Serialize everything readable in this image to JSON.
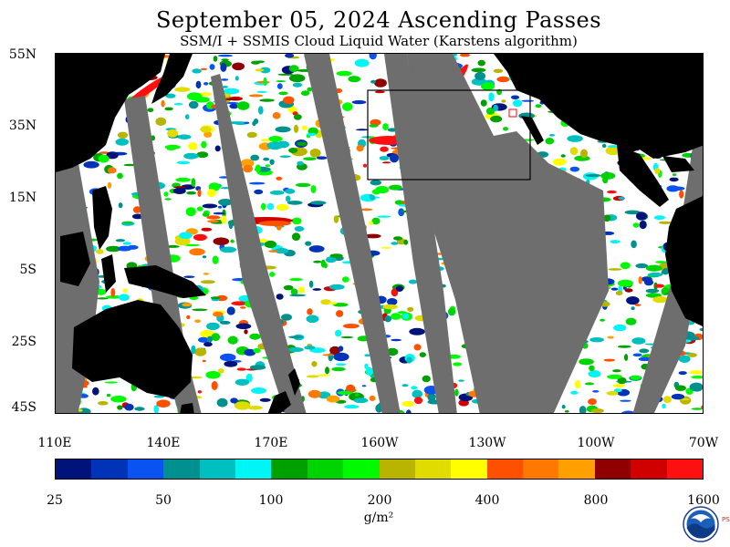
{
  "title": "September 05, 2024  Ascending Passes",
  "subtitle": "SSM/I + SSMIS Cloud Liquid Water (Karstens algorithm)",
  "lat_labels": [
    "55N",
    "35N",
    "15N",
    "5S",
    "25S",
    "45S"
  ],
  "lon_labels": [
    "110E",
    "140E",
    "170E",
    "160W",
    "130W",
    "100W",
    "70W"
  ],
  "colorbar": {
    "colors": [
      "#00137a",
      "#0033b8",
      "#0b53f0",
      "#009090",
      "#00bfc0",
      "#00f5f5",
      "#00a000",
      "#00d400",
      "#00fa00",
      "#b8b400",
      "#e0dc00",
      "#ffff00",
      "#ff5000",
      "#ff7800",
      "#ffa000",
      "#900000",
      "#d00000",
      "#ff1010"
    ],
    "labels": [
      "25",
      "50",
      "100",
      "200",
      "400",
      "800",
      "1600"
    ],
    "unit": "g/m²"
  },
  "logo": {
    "name": "NOAA",
    "side_text": "PSL"
  },
  "map_colors": {
    "land": "#000000",
    "no_data": "#6e6e6e",
    "clear": "#ffffff"
  }
}
